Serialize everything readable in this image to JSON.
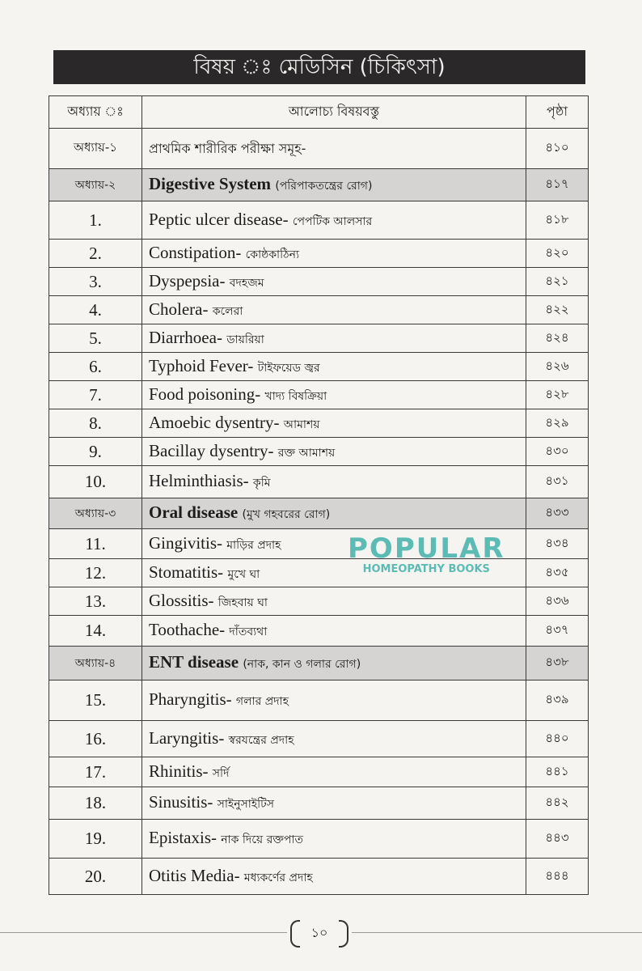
{
  "title": "বিষয় ঃ মেডিসিন (চিকিৎসা)",
  "table": {
    "headers": {
      "chapter": "অধ্যায় ঃ",
      "topic": "আলোচ্য বিষয়বস্তু",
      "page": "পৃষ্ঠা"
    },
    "rows": [
      {
        "kind": "ch1",
        "num": "অধ্যায়-১",
        "en": "",
        "bn": "প্রাথমিক শারীরিক পরীক্ষা সমূহ-",
        "page": "৪১০"
      },
      {
        "kind": "chap",
        "num": "অধ্যায়-২",
        "en": "Digestive System",
        "bn": "(পরিপাকতন্ত্রের রোগ)",
        "page": "৪১৭"
      },
      {
        "kind": "item",
        "num": "1.",
        "en": "Peptic ulcer disease-",
        "bn": "পেপটিক আলসার",
        "page": "৪১৮"
      },
      {
        "kind": "item",
        "num": "2.",
        "en": "Constipation-",
        "bn": "কোষ্ঠকাঠিন্য",
        "page": "৪২০"
      },
      {
        "kind": "item",
        "num": "3.",
        "en": "Dyspepsia-",
        "bn": "বদহজম",
        "page": "৪২১"
      },
      {
        "kind": "item",
        "num": "4.",
        "en": "Cholera-",
        "bn": "কলেরা",
        "page": "৪২২"
      },
      {
        "kind": "item",
        "num": "5.",
        "en": "Diarrhoea-",
        "bn": "ডায়রিয়া",
        "page": "৪২৪"
      },
      {
        "kind": "item",
        "num": "6.",
        "en": "Typhoid Fever-",
        "bn": "টাইফয়েড জ্বর",
        "page": "৪২৬"
      },
      {
        "kind": "item",
        "num": "7.",
        "en": "Food poisoning-",
        "bn": "খাদ্য বিষক্রিয়া",
        "page": "৪২৮"
      },
      {
        "kind": "item",
        "num": "8.",
        "en": "Amoebic dysentry-",
        "bn": "আমাশয়",
        "page": "৪২৯"
      },
      {
        "kind": "item",
        "num": "9.",
        "en": "Bacillay dysentry-",
        "bn": "রক্ত আমাশয়",
        "page": "৪৩০"
      },
      {
        "kind": "item",
        "num": "10.",
        "en": "Helminthiasis-",
        "bn": "কৃমি",
        "page": "৪৩১"
      },
      {
        "kind": "chap",
        "num": "অধ্যায়-৩",
        "en": "Oral disease",
        "bn": "(মুখ গহবরের রোগ)",
        "page": "৪৩৩"
      },
      {
        "kind": "item",
        "num": "11.",
        "en": "Gingivitis-",
        "bn": "মাড়ির প্রদাহ",
        "page": "৪৩৪"
      },
      {
        "kind": "item",
        "num": "12.",
        "en": "Stomatitis-",
        "bn": "মুখে ঘা",
        "page": "৪৩৫"
      },
      {
        "kind": "item",
        "num": "13.",
        "en": "Glossitis-",
        "bn": "জিহবায় ঘা",
        "page": "৪৩৬"
      },
      {
        "kind": "item",
        "num": "14.",
        "en": "Toothache-",
        "bn": "দাঁতব্যথা",
        "page": "৪৩৭"
      },
      {
        "kind": "chap",
        "num": "অধ্যায়-৪",
        "en": "ENT disease",
        "bn": "(নাক, কান ও গলার রোগ)",
        "page": "৪৩৮"
      },
      {
        "kind": "item",
        "num": "15.",
        "en": "Pharyngitis-",
        "bn": "গলার প্রদাহ",
        "page": "৪৩৯"
      },
      {
        "kind": "item",
        "num": "16.",
        "en": "Laryngitis-",
        "bn": "স্বরযন্ত্রের প্রদাহ",
        "page": "৪৪০"
      },
      {
        "kind": "item",
        "num": "17.",
        "en": "Rhinitis-",
        "bn": "সর্দি",
        "page": "৪৪১"
      },
      {
        "kind": "item",
        "num": "18.",
        "en": "Sinusitis-",
        "bn": "সাইনুসাইটিস",
        "page": "৪৪২"
      },
      {
        "kind": "item",
        "num": "19.",
        "en": "Epistaxis-",
        "bn": "নাক দিয়ে রক্তপাত",
        "page": "৪৪৩"
      },
      {
        "kind": "item",
        "num": "20.",
        "en": "Otitis Media-",
        "bn": "মধ্যকর্ণের প্রদাহ",
        "page": "৪৪৪"
      }
    ]
  },
  "watermark": {
    "line1": "POPULAR",
    "line2": "HOMEOPATHY BOOKS"
  },
  "page_number": "১০"
}
